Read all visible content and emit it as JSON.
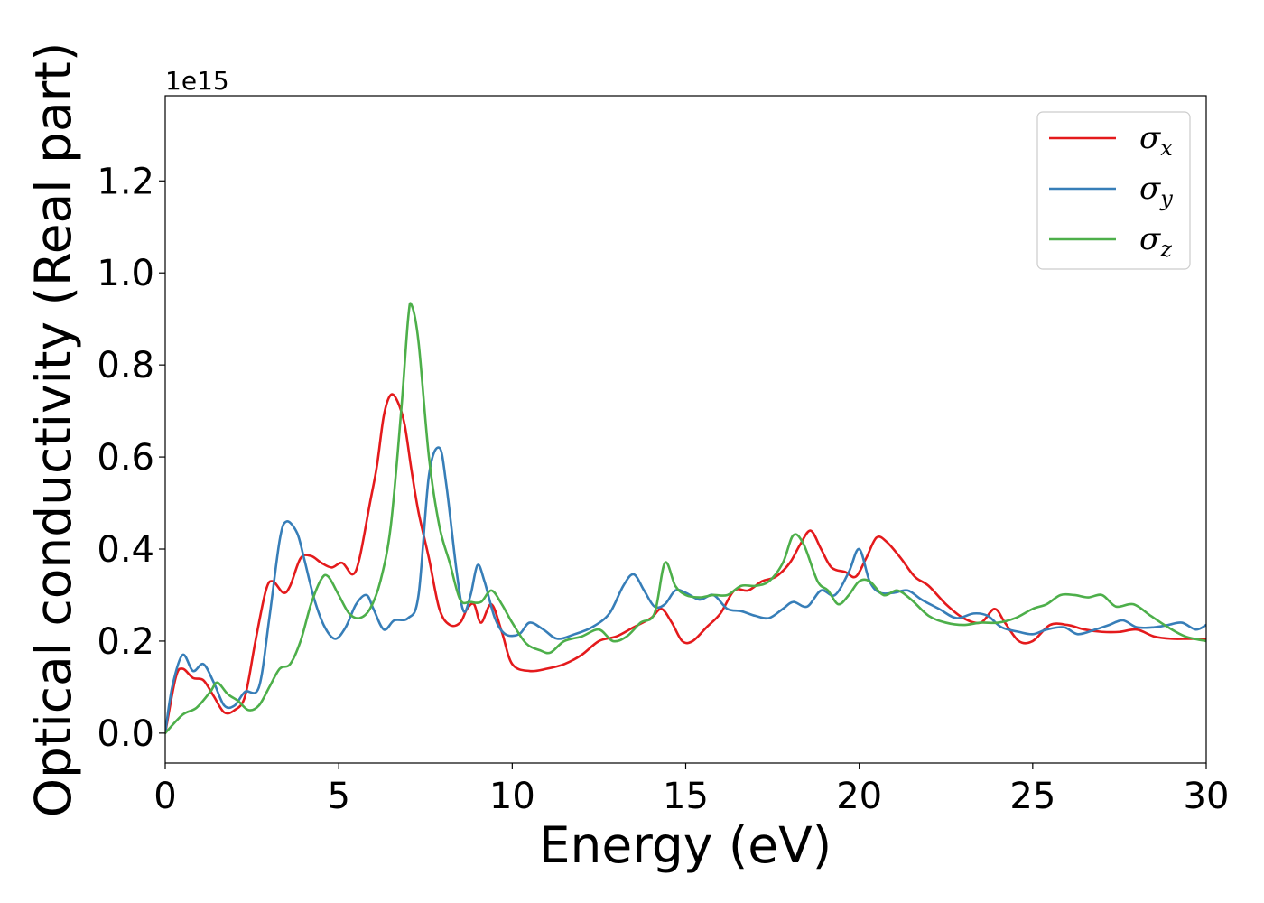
{
  "chart_data": {
    "type": "line",
    "xlabel": "Energy (eV)",
    "ylabel": "Optical conductivity (Real part)",
    "y_offset_text": "1e15",
    "xlim": [
      0,
      30
    ],
    "ylim": [
      -0.065,
      1.385
    ],
    "xticks": [
      0,
      5,
      10,
      15,
      20,
      25,
      30
    ],
    "xtick_labels": [
      "0",
      "5",
      "10",
      "15",
      "20",
      "25",
      "30"
    ],
    "yticks": [
      0.0,
      0.2,
      0.4,
      0.6,
      0.8,
      1.0,
      1.2
    ],
    "ytick_labels": [
      "0.0",
      "0.2",
      "0.4",
      "0.6",
      "0.8",
      "1.0",
      "1.2"
    ],
    "grid": false,
    "legend_position": "top-right",
    "series": [
      {
        "name": "σx",
        "symbol": "σ",
        "subscript": "x",
        "color": "#e41a1c",
        "points": [
          [
            0,
            0
          ],
          [
            0.3,
            0.12
          ],
          [
            0.5,
            0.14
          ],
          [
            0.8,
            0.12
          ],
          [
            1.1,
            0.115
          ],
          [
            1.4,
            0.08
          ],
          [
            1.7,
            0.045
          ],
          [
            2.0,
            0.05
          ],
          [
            2.3,
            0.08
          ],
          [
            2.6,
            0.2
          ],
          [
            2.9,
            0.31
          ],
          [
            3.1,
            0.33
          ],
          [
            3.4,
            0.305
          ],
          [
            3.6,
            0.32
          ],
          [
            3.9,
            0.38
          ],
          [
            4.2,
            0.385
          ],
          [
            4.5,
            0.37
          ],
          [
            4.8,
            0.36
          ],
          [
            5.1,
            0.37
          ],
          [
            5.4,
            0.345
          ],
          [
            5.6,
            0.38
          ],
          [
            5.9,
            0.5
          ],
          [
            6.1,
            0.58
          ],
          [
            6.3,
            0.69
          ],
          [
            6.5,
            0.735
          ],
          [
            6.7,
            0.72
          ],
          [
            6.9,
            0.67
          ],
          [
            7.1,
            0.57
          ],
          [
            7.3,
            0.48
          ],
          [
            7.6,
            0.38
          ],
          [
            7.9,
            0.27
          ],
          [
            8.2,
            0.235
          ],
          [
            8.5,
            0.24
          ],
          [
            8.7,
            0.27
          ],
          [
            8.9,
            0.28
          ],
          [
            9.1,
            0.24
          ],
          [
            9.4,
            0.28
          ],
          [
            9.7,
            0.22
          ],
          [
            10.0,
            0.15
          ],
          [
            10.5,
            0.135
          ],
          [
            11.0,
            0.14
          ],
          [
            11.5,
            0.15
          ],
          [
            12.0,
            0.17
          ],
          [
            12.5,
            0.2
          ],
          [
            13.0,
            0.21
          ],
          [
            13.5,
            0.23
          ],
          [
            14.0,
            0.25
          ],
          [
            14.3,
            0.27
          ],
          [
            14.6,
            0.24
          ],
          [
            14.9,
            0.2
          ],
          [
            15.2,
            0.2
          ],
          [
            15.6,
            0.23
          ],
          [
            16.0,
            0.26
          ],
          [
            16.4,
            0.31
          ],
          [
            16.8,
            0.31
          ],
          [
            17.2,
            0.33
          ],
          [
            17.6,
            0.34
          ],
          [
            18.0,
            0.37
          ],
          [
            18.3,
            0.41
          ],
          [
            18.6,
            0.44
          ],
          [
            18.9,
            0.4
          ],
          [
            19.2,
            0.36
          ],
          [
            19.6,
            0.35
          ],
          [
            19.9,
            0.34
          ],
          [
            20.2,
            0.38
          ],
          [
            20.5,
            0.425
          ],
          [
            20.8,
            0.415
          ],
          [
            21.2,
            0.38
          ],
          [
            21.6,
            0.34
          ],
          [
            22.0,
            0.32
          ],
          [
            22.5,
            0.28
          ],
          [
            23.0,
            0.25
          ],
          [
            23.5,
            0.24
          ],
          [
            23.9,
            0.27
          ],
          [
            24.2,
            0.24
          ],
          [
            24.6,
            0.2
          ],
          [
            25.0,
            0.2
          ],
          [
            25.5,
            0.235
          ],
          [
            26.0,
            0.235
          ],
          [
            26.5,
            0.225
          ],
          [
            27.0,
            0.22
          ],
          [
            27.5,
            0.22
          ],
          [
            28.0,
            0.225
          ],
          [
            28.5,
            0.21
          ],
          [
            29.0,
            0.205
          ],
          [
            29.5,
            0.205
          ],
          [
            30.0,
            0.205
          ]
        ]
      },
      {
        "name": "σy",
        "symbol": "σ",
        "subscript": "y",
        "color": "#377eb8",
        "points": [
          [
            0,
            0
          ],
          [
            0.2,
            0.1
          ],
          [
            0.5,
            0.17
          ],
          [
            0.8,
            0.135
          ],
          [
            1.1,
            0.15
          ],
          [
            1.4,
            0.11
          ],
          [
            1.7,
            0.06
          ],
          [
            2.0,
            0.06
          ],
          [
            2.3,
            0.09
          ],
          [
            2.7,
            0.1
          ],
          [
            3.0,
            0.25
          ],
          [
            3.3,
            0.42
          ],
          [
            3.5,
            0.46
          ],
          [
            3.8,
            0.435
          ],
          [
            4.0,
            0.38
          ],
          [
            4.3,
            0.29
          ],
          [
            4.6,
            0.23
          ],
          [
            4.9,
            0.205
          ],
          [
            5.2,
            0.23
          ],
          [
            5.5,
            0.28
          ],
          [
            5.8,
            0.3
          ],
          [
            6.0,
            0.27
          ],
          [
            6.3,
            0.225
          ],
          [
            6.6,
            0.245
          ],
          [
            7.0,
            0.25
          ],
          [
            7.3,
            0.3
          ],
          [
            7.6,
            0.56
          ],
          [
            7.9,
            0.62
          ],
          [
            8.1,
            0.54
          ],
          [
            8.4,
            0.35
          ],
          [
            8.6,
            0.265
          ],
          [
            8.8,
            0.3
          ],
          [
            9.0,
            0.365
          ],
          [
            9.2,
            0.33
          ],
          [
            9.5,
            0.25
          ],
          [
            9.8,
            0.215
          ],
          [
            10.2,
            0.215
          ],
          [
            10.5,
            0.24
          ],
          [
            10.9,
            0.225
          ],
          [
            11.3,
            0.205
          ],
          [
            11.8,
            0.215
          ],
          [
            12.3,
            0.23
          ],
          [
            12.8,
            0.26
          ],
          [
            13.2,
            0.32
          ],
          [
            13.5,
            0.345
          ],
          [
            13.8,
            0.31
          ],
          [
            14.1,
            0.275
          ],
          [
            14.4,
            0.28
          ],
          [
            14.7,
            0.31
          ],
          [
            15.0,
            0.305
          ],
          [
            15.4,
            0.29
          ],
          [
            15.8,
            0.3
          ],
          [
            16.2,
            0.27
          ],
          [
            16.6,
            0.265
          ],
          [
            17.0,
            0.255
          ],
          [
            17.4,
            0.25
          ],
          [
            17.8,
            0.27
          ],
          [
            18.1,
            0.285
          ],
          [
            18.5,
            0.275
          ],
          [
            18.9,
            0.31
          ],
          [
            19.3,
            0.3
          ],
          [
            19.7,
            0.35
          ],
          [
            20.0,
            0.4
          ],
          [
            20.3,
            0.33
          ],
          [
            20.6,
            0.305
          ],
          [
            21.0,
            0.305
          ],
          [
            21.4,
            0.31
          ],
          [
            21.8,
            0.29
          ],
          [
            22.3,
            0.27
          ],
          [
            22.8,
            0.25
          ],
          [
            23.3,
            0.26
          ],
          [
            23.7,
            0.255
          ],
          [
            24.1,
            0.23
          ],
          [
            24.6,
            0.22
          ],
          [
            25.0,
            0.215
          ],
          [
            25.4,
            0.225
          ],
          [
            25.9,
            0.23
          ],
          [
            26.3,
            0.215
          ],
          [
            26.8,
            0.225
          ],
          [
            27.2,
            0.235
          ],
          [
            27.6,
            0.245
          ],
          [
            28.0,
            0.23
          ],
          [
            28.5,
            0.23
          ],
          [
            28.9,
            0.235
          ],
          [
            29.3,
            0.24
          ],
          [
            29.7,
            0.225
          ],
          [
            30.0,
            0.235
          ]
        ]
      },
      {
        "name": "σz",
        "symbol": "σ",
        "subscript": "z",
        "color": "#4daf4a",
        "points": [
          [
            0,
            0
          ],
          [
            0.5,
            0.04
          ],
          [
            0.9,
            0.055
          ],
          [
            1.3,
            0.09
          ],
          [
            1.5,
            0.11
          ],
          [
            1.8,
            0.085
          ],
          [
            2.1,
            0.07
          ],
          [
            2.4,
            0.05
          ],
          [
            2.7,
            0.06
          ],
          [
            3.0,
            0.1
          ],
          [
            3.3,
            0.14
          ],
          [
            3.6,
            0.15
          ],
          [
            3.9,
            0.2
          ],
          [
            4.2,
            0.28
          ],
          [
            4.5,
            0.335
          ],
          [
            4.7,
            0.34
          ],
          [
            5.0,
            0.3
          ],
          [
            5.3,
            0.26
          ],
          [
            5.6,
            0.25
          ],
          [
            5.9,
            0.27
          ],
          [
            6.2,
            0.33
          ],
          [
            6.5,
            0.45
          ],
          [
            6.8,
            0.7
          ],
          [
            7.0,
            0.9
          ],
          [
            7.1,
            0.93
          ],
          [
            7.3,
            0.85
          ],
          [
            7.6,
            0.6
          ],
          [
            7.9,
            0.45
          ],
          [
            8.2,
            0.37
          ],
          [
            8.5,
            0.29
          ],
          [
            8.8,
            0.285
          ],
          [
            9.1,
            0.285
          ],
          [
            9.4,
            0.31
          ],
          [
            9.7,
            0.28
          ],
          [
            10.0,
            0.24
          ],
          [
            10.4,
            0.195
          ],
          [
            10.8,
            0.18
          ],
          [
            11.1,
            0.175
          ],
          [
            11.5,
            0.2
          ],
          [
            12.0,
            0.21
          ],
          [
            12.5,
            0.225
          ],
          [
            12.9,
            0.2
          ],
          [
            13.3,
            0.21
          ],
          [
            13.7,
            0.24
          ],
          [
            14.1,
            0.26
          ],
          [
            14.4,
            0.37
          ],
          [
            14.7,
            0.32
          ],
          [
            15.0,
            0.3
          ],
          [
            15.4,
            0.295
          ],
          [
            15.8,
            0.3
          ],
          [
            16.2,
            0.3
          ],
          [
            16.6,
            0.32
          ],
          [
            17.0,
            0.32
          ],
          [
            17.4,
            0.33
          ],
          [
            17.8,
            0.37
          ],
          [
            18.1,
            0.43
          ],
          [
            18.4,
            0.41
          ],
          [
            18.8,
            0.33
          ],
          [
            19.1,
            0.31
          ],
          [
            19.4,
            0.28
          ],
          [
            19.7,
            0.3
          ],
          [
            20.0,
            0.33
          ],
          [
            20.3,
            0.33
          ],
          [
            20.7,
            0.3
          ],
          [
            21.1,
            0.31
          ],
          [
            21.5,
            0.29
          ],
          [
            22.0,
            0.255
          ],
          [
            22.5,
            0.24
          ],
          [
            23.0,
            0.235
          ],
          [
            23.5,
            0.24
          ],
          [
            24.0,
            0.24
          ],
          [
            24.5,
            0.25
          ],
          [
            25.0,
            0.27
          ],
          [
            25.4,
            0.28
          ],
          [
            25.8,
            0.3
          ],
          [
            26.2,
            0.3
          ],
          [
            26.6,
            0.295
          ],
          [
            27.0,
            0.3
          ],
          [
            27.4,
            0.275
          ],
          [
            27.9,
            0.28
          ],
          [
            28.4,
            0.255
          ],
          [
            28.9,
            0.23
          ],
          [
            29.4,
            0.21
          ],
          [
            30.0,
            0.2
          ]
        ]
      }
    ]
  }
}
